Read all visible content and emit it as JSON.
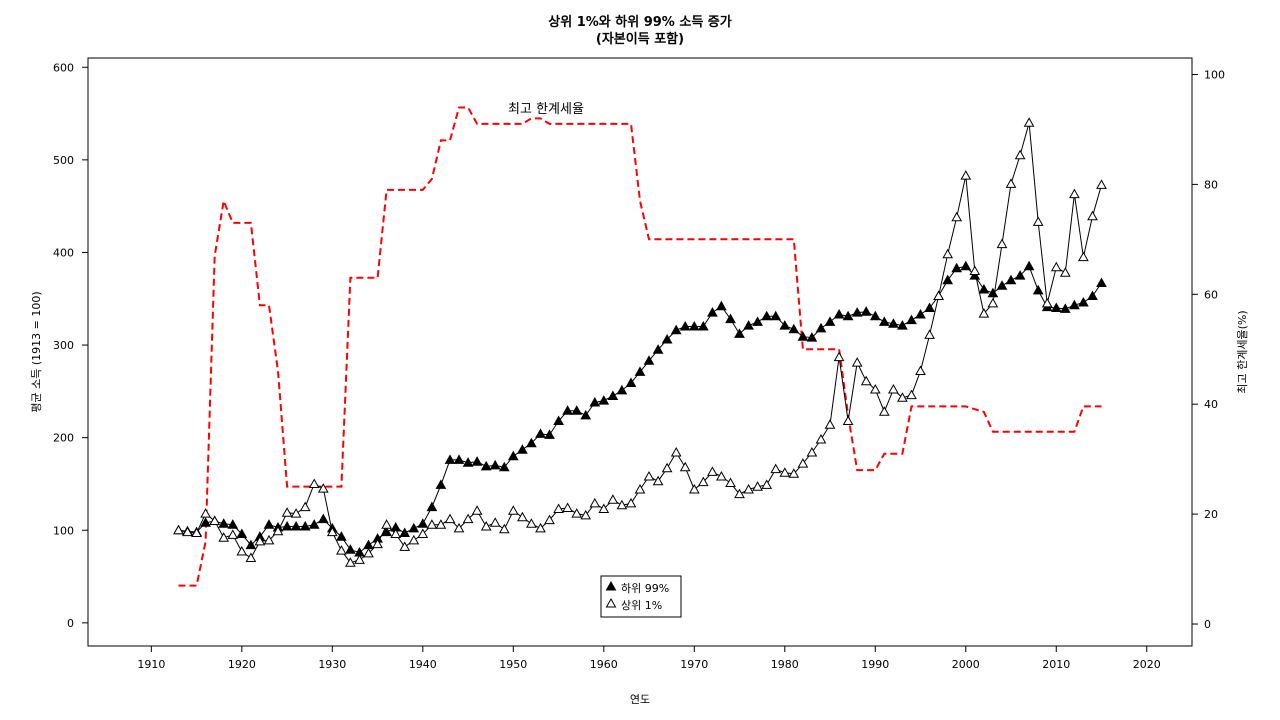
{
  "chart_data": {
    "type": "line",
    "title": "상위 1%와 하위 99% 소득 증가",
    "subtitle": "(자본이득 포함)",
    "xlabel": "연도",
    "ylabel": "평균 소득 (1913 = 100)",
    "y2label": "최고 한계세율(%)",
    "xlim": [
      1903,
      2025
    ],
    "ylim": [
      -25,
      610
    ],
    "y2lim": [
      -4,
      103
    ],
    "x_ticks": [
      1910,
      1920,
      1930,
      1940,
      1950,
      1960,
      1970,
      1980,
      1990,
      2000,
      2010,
      2020
    ],
    "y_ticks": [
      0,
      100,
      200,
      300,
      400,
      500,
      600
    ],
    "y2_ticks": [
      0,
      20,
      40,
      60,
      80,
      100
    ],
    "annotation": "최고 한계세율",
    "legend_position": "bottom-center",
    "x": [
      1913,
      1914,
      1915,
      1916,
      1917,
      1918,
      1919,
      1920,
      1921,
      1922,
      1923,
      1924,
      1925,
      1926,
      1927,
      1928,
      1929,
      1930,
      1931,
      1932,
      1933,
      1934,
      1935,
      1936,
      1937,
      1938,
      1939,
      1940,
      1941,
      1942,
      1943,
      1944,
      1945,
      1946,
      1947,
      1948,
      1949,
      1950,
      1951,
      1952,
      1953,
      1954,
      1955,
      1956,
      1957,
      1958,
      1959,
      1960,
      1961,
      1962,
      1963,
      1964,
      1965,
      1966,
      1967,
      1968,
      1969,
      1970,
      1971,
      1972,
      1973,
      1974,
      1975,
      1976,
      1977,
      1978,
      1979,
      1980,
      1981,
      1982,
      1983,
      1984,
      1985,
      1986,
      1987,
      1988,
      1989,
      1990,
      1991,
      1992,
      1993,
      1994,
      1995,
      1996,
      1997,
      1998,
      1999,
      2000,
      2001,
      2002,
      2003,
      2004,
      2005,
      2006,
      2007,
      2008,
      2009,
      2010,
      2011,
      2012,
      2013,
      2014,
      2015
    ],
    "series": [
      {
        "name": "하위 99%",
        "marker": "filled-triangle",
        "color": "#000000",
        "values": [
          100,
          99,
          98,
          108,
          110,
          107,
          106,
          96,
          84,
          93,
          106,
          103,
          104,
          104,
          104,
          106,
          112,
          102,
          93,
          79,
          76,
          84,
          91,
          98,
          103,
          97,
          102,
          107,
          125,
          149,
          176,
          176,
          173,
          174,
          169,
          170,
          168,
          180,
          187,
          194,
          204,
          203,
          218,
          229,
          229,
          224,
          238,
          240,
          245,
          251,
          259,
          271,
          283,
          295,
          306,
          316,
          320,
          320,
          320,
          335,
          342,
          328,
          312,
          321,
          325,
          331,
          331,
          321,
          317,
          309,
          308,
          318,
          325,
          333,
          331,
          335,
          336,
          331,
          325,
          323,
          321,
          327,
          333,
          340,
          353,
          370,
          383,
          385,
          375,
          360,
          356,
          364,
          370,
          375,
          385,
          359,
          341,
          340,
          339,
          343,
          346,
          353,
          367
        ]
      },
      {
        "name": "상위 1%",
        "marker": "open-triangle",
        "color": "#000000",
        "values": [
          100,
          98,
          97,
          118,
          110,
          92,
          95,
          77,
          70,
          88,
          89,
          99,
          119,
          118,
          125,
          150,
          145,
          98,
          78,
          65,
          68,
          75,
          85,
          106,
          96,
          82,
          89,
          96,
          106,
          106,
          112,
          102,
          112,
          121,
          104,
          108,
          101,
          121,
          114,
          107,
          102,
          111,
          123,
          124,
          118,
          116,
          129,
          123,
          133,
          127,
          129,
          144,
          158,
          153,
          167,
          184,
          168,
          144,
          152,
          163,
          158,
          151,
          139,
          144,
          147,
          149,
          166,
          162,
          161,
          172,
          184,
          198,
          214,
          287,
          218,
          281,
          261,
          252,
          228,
          252,
          243,
          246,
          272,
          311,
          353,
          398,
          438,
          483,
          380,
          334,
          345,
          409,
          474,
          505,
          540,
          433,
          345,
          384,
          378,
          463,
          395,
          439,
          473
        ]
      }
    ],
    "tax_rate": {
      "name": "최고 한계세율",
      "color": "#ff0000",
      "style": "dashed",
      "x": [
        1913,
        1915,
        1916,
        1917,
        1918,
        1919,
        1920,
        1921,
        1922,
        1923,
        1924,
        1925,
        1926,
        1930,
        1931,
        1932,
        1935,
        1936,
        1940,
        1941,
        1942,
        1943,
        1944,
        1945,
        1946,
        1950,
        1951,
        1952,
        1953,
        1954,
        1963,
        1964,
        1965,
        1980,
        1981,
        1982,
        1986,
        1987,
        1988,
        1990,
        1991,
        1992,
        1993,
        1994,
        2000,
        2001,
        2002,
        2003,
        2012,
        2013,
        2015
      ],
      "values": [
        7,
        7,
        15,
        67,
        77,
        73,
        73,
        73,
        58,
        58,
        46,
        25,
        25,
        25,
        25,
        63,
        63,
        79,
        79,
        81,
        88,
        88,
        94,
        94,
        91,
        91,
        91,
        92,
        92,
        91,
        91,
        77,
        70,
        70,
        70,
        50,
        50,
        38,
        28,
        28,
        31,
        31,
        31,
        39.6,
        39.6,
        39.1,
        38.6,
        35,
        35,
        39.6,
        39.6
      ]
    }
  }
}
